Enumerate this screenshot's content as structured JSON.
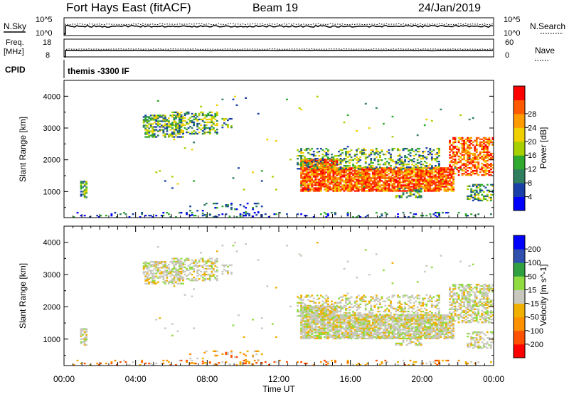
{
  "header": {
    "title": "Fort Hays East (fitACF)",
    "beam": "Beam 19",
    "date": "24/Jan/2019"
  },
  "noise_panel": {
    "left_label": "N.Sky",
    "left_ticks": [
      "10^5",
      "10^0"
    ],
    "right_label": "N.Search",
    "right_ticks": [
      "10^5",
      "10^0"
    ]
  },
  "freq_panel": {
    "left_label_line1": "Freq.",
    "left_label_line2": "[MHz]",
    "left_ticks": [
      "18",
      "8"
    ],
    "right_label": "Nave",
    "right_ticks": [
      "60",
      "0"
    ]
  },
  "cpid_panel": {
    "label": "CPID",
    "text": "themis -3300 IF"
  },
  "chart_data": [
    {
      "type": "heatmap",
      "name": "power",
      "ylabel": "Slant Range [km]",
      "ylim": [
        180,
        4500
      ],
      "yticks": [
        1000,
        2000,
        3000,
        4000
      ],
      "xlim": [
        0,
        24
      ],
      "colorbar": {
        "label": "Power [dB]",
        "ticks": [
          "28",
          "24",
          "20",
          "16",
          "12",
          "8",
          "4"
        ],
        "colors": [
          "#0000ff",
          "#1a3fa8",
          "#2f7f5f",
          "#2faa2f",
          "#a8d000",
          "#f0d000",
          "#ff9a00",
          "#ff5a00",
          "#ff0000"
        ]
      }
    },
    {
      "type": "heatmap",
      "name": "velocity",
      "ylabel": "Slant Range [km]",
      "ylim": [
        180,
        4500
      ],
      "yticks": [
        1000,
        2000,
        3000,
        4000
      ],
      "xlim": [
        0,
        24
      ],
      "colorbar": {
        "label": "Velocity [m s^-1]",
        "ticks": [
          "200",
          "100",
          "50",
          "15",
          "-15",
          "-50",
          "-100",
          "-200"
        ],
        "colors": [
          "#ff0000",
          "#ff5000",
          "#ff9000",
          "#f0b000",
          "#c8c8be",
          "#90dc40",
          "#30a040",
          "#3050b0",
          "#0000ff"
        ]
      }
    }
  ],
  "x_axis": {
    "label": "Time UT",
    "ticks": [
      "00:00",
      "04:00",
      "08:00",
      "12:00",
      "16:00",
      "20:00",
      "00:00"
    ]
  }
}
